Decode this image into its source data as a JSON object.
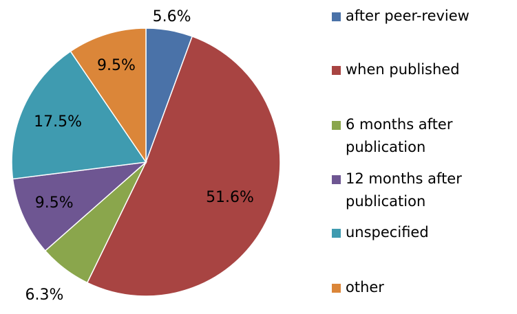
{
  "chart_data": {
    "type": "pie",
    "categories": [
      "after peer-review",
      "when published",
      "6 months after publication",
      "12 months after publication",
      "unspecified",
      "other"
    ],
    "values": [
      5.6,
      51.6,
      6.3,
      9.5,
      17.5,
      9.5
    ],
    "value_labels": [
      "5.6%",
      "51.6%",
      "6.3%",
      "9.5%",
      "17.5%",
      "9.5%"
    ],
    "colors": [
      "#4a72a8",
      "#a84442",
      "#8aa64c",
      "#6e5692",
      "#3f9bb0",
      "#db8639"
    ],
    "legend": "right"
  }
}
